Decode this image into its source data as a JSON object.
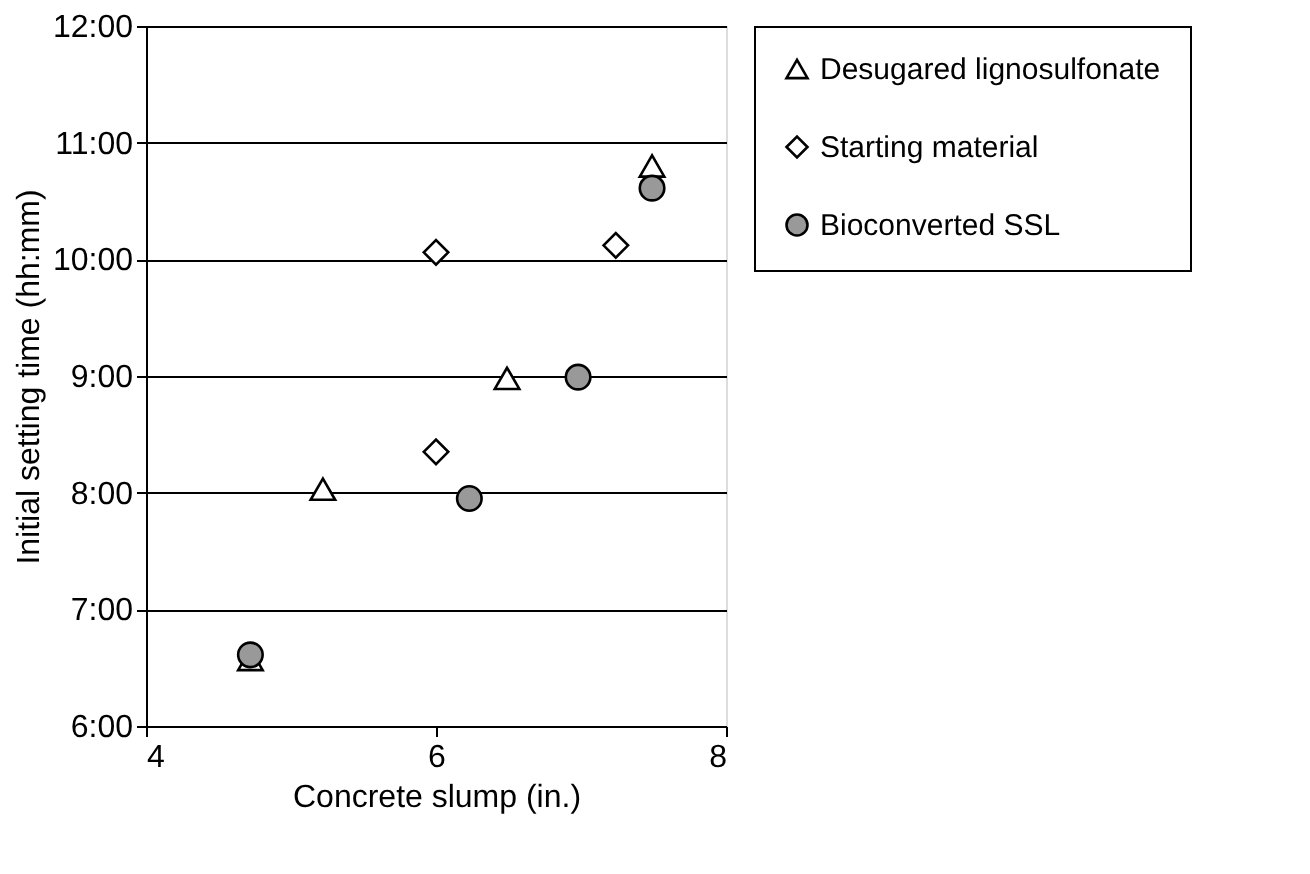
{
  "chart_data": {
    "type": "scatter",
    "xlabel": "Concrete slump (in.)",
    "ylabel": "Initial setting time (hh:mm)",
    "xlim": [
      4,
      8
    ],
    "xticks": [
      4,
      6,
      8
    ],
    "ylim": [
      6,
      12
    ],
    "yticks": [
      {
        "value": 6,
        "label": "6:00"
      },
      {
        "value": 7,
        "label": "7:00"
      },
      {
        "value": 8,
        "label": "8:00"
      },
      {
        "value": 9,
        "label": "9:00"
      },
      {
        "value": 10,
        "label": "10:00"
      },
      {
        "value": 11,
        "label": "11:00"
      },
      {
        "value": 12,
        "label": "12:00"
      }
    ],
    "grid": "y",
    "legend": "right",
    "series": [
      {
        "name": "Desugared lignosulfonate",
        "color": "#ffffff",
        "marker": "triangle",
        "x": [
          4.72,
          5.22,
          6.49,
          7.49
        ],
        "values": [
          6.57,
          8.03,
          8.98,
          10.8
        ]
      },
      {
        "name": "Starting material",
        "color": "#ffffff",
        "marker": "diamond",
        "x": [
          6.0,
          6.0,
          7.24
        ],
        "values": [
          10.06,
          8.35,
          10.12
        ]
      },
      {
        "name": "Bioconverted SSL",
        "color": "#999999",
        "marker": "circle",
        "x": [
          4.72,
          6.23,
          6.98,
          7.49
        ],
        "values": [
          6.61,
          7.95,
          8.99,
          10.61
        ]
      }
    ]
  }
}
